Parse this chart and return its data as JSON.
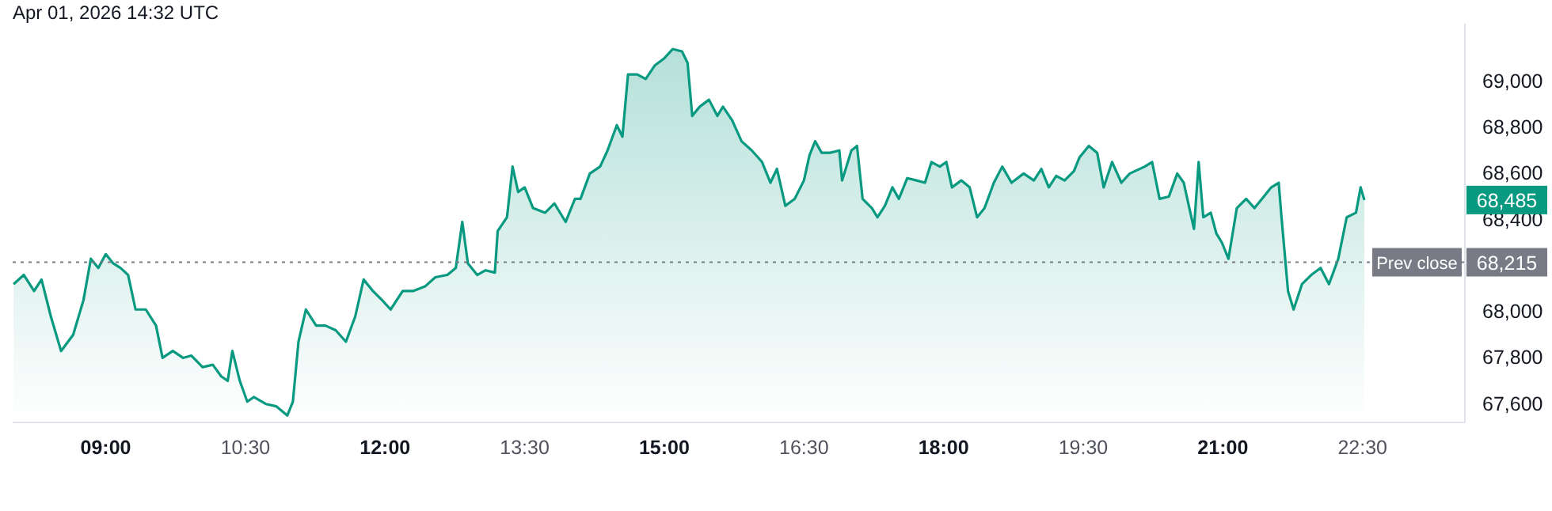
{
  "chart_data": {
    "type": "area",
    "annotations": [
      "Apr 01, 2026 14:32 UTC",
      "68,485",
      "68,215"
    ],
    "x": [
      8.01,
      8.12,
      8.23,
      8.31,
      8.41,
      8.52,
      8.65,
      8.76,
      8.84,
      8.92,
      9.0,
      9.08,
      9.16,
      9.24,
      9.32,
      9.43,
      9.54,
      9.61,
      9.72,
      9.83,
      9.92,
      10.04,
      10.15,
      10.24,
      10.31,
      10.36,
      10.44,
      10.52,
      10.59,
      10.72,
      10.83,
      10.95,
      11.01,
      11.07,
      11.15,
      11.26,
      11.36,
      11.47,
      11.58,
      11.68,
      11.77,
      11.87,
      11.97,
      12.06,
      12.19,
      12.3,
      12.43,
      12.54,
      12.67,
      12.76,
      12.83,
      12.89,
      12.99,
      13.08,
      13.18,
      13.21,
      13.31,
      13.37,
      13.43,
      13.5,
      13.59,
      13.72,
      13.82,
      13.94,
      14.04,
      14.1,
      14.2,
      14.31,
      14.39,
      14.49,
      14.55,
      14.61,
      14.71,
      14.8,
      14.9,
      15.0,
      15.09,
      15.19,
      15.25,
      15.3,
      15.38,
      15.48,
      15.57,
      15.63,
      15.73,
      15.83,
      15.94,
      16.05,
      16.14,
      16.21,
      16.3,
      16.4,
      16.5,
      16.56,
      16.62,
      16.69,
      16.78,
      16.88,
      16.91,
      17.01,
      17.07,
      17.13,
      17.23,
      17.29,
      17.37,
      17.45,
      17.52,
      17.61,
      17.71,
      17.8,
      17.87,
      17.96,
      18.03,
      18.09,
      18.19,
      18.28,
      18.36,
      18.44,
      18.54,
      18.63,
      18.73,
      18.86,
      18.97,
      19.05,
      19.13,
      19.21,
      19.3,
      19.4,
      19.46,
      19.56,
      19.65,
      19.72,
      19.81,
      19.91,
      20.0,
      20.16,
      20.24,
      20.32,
      20.42,
      20.51,
      20.58,
      20.64,
      20.69,
      20.74,
      20.79,
      20.87,
      20.93,
      20.99,
      21.06,
      21.15,
      21.25,
      21.34,
      21.44,
      21.52,
      21.6,
      21.63,
      21.7,
      21.76,
      21.85,
      21.95,
      22.05,
      22.14,
      22.24,
      22.33,
      22.43,
      22.48,
      22.52
    ],
    "series": [
      {
        "color": "#089981",
        "values": [
          68120,
          68160,
          68090,
          68140,
          67980,
          67830,
          67900,
          68050,
          68230,
          68190,
          68250,
          68210,
          68190,
          68160,
          68010,
          68010,
          67940,
          67800,
          67830,
          67800,
          67810,
          67760,
          67770,
          67720,
          67700,
          67830,
          67700,
          67610,
          67630,
          67600,
          67590,
          67550,
          67610,
          67870,
          68010,
          67940,
          67940,
          67920,
          67870,
          67980,
          68140,
          68090,
          68050,
          68010,
          68090,
          68090,
          68110,
          68150,
          68160,
          68190,
          68390,
          68210,
          68160,
          68180,
          68170,
          68350,
          68410,
          68630,
          68520,
          68540,
          68450,
          68430,
          68470,
          68390,
          68490,
          68490,
          68600,
          68630,
          68700,
          68810,
          68760,
          69030,
          69030,
          69010,
          69070,
          69100,
          69140,
          69130,
          69080,
          68850,
          68890,
          68920,
          68850,
          68890,
          68830,
          68740,
          68700,
          68650,
          68560,
          68620,
          68460,
          68490,
          68570,
          68680,
          68740,
          68690,
          68690,
          68700,
          68570,
          68700,
          68720,
          68490,
          68450,
          68410,
          68460,
          68540,
          68490,
          68580,
          68570,
          68560,
          68650,
          68630,
          68650,
          68540,
          68570,
          68540,
          68410,
          68450,
          68560,
          68630,
          68560,
          68600,
          68570,
          68620,
          68540,
          68590,
          68570,
          68610,
          68670,
          68720,
          68690,
          68540,
          68650,
          68560,
          68600,
          68630,
          68650,
          68490,
          68500,
          68600,
          68560,
          68450,
          68360,
          68650,
          68410,
          68430,
          68340,
          68300,
          68230,
          68450,
          68490,
          68450,
          68500,
          68540,
          68560,
          68410,
          68090,
          68010,
          68120,
          68160,
          68190,
          68120,
          68230,
          68410,
          68430,
          68540,
          68485
        ]
      }
    ],
    "xlim": [
      8.0,
      23.6
    ],
    "ylim": [
      67520,
      69250
    ],
    "xticks": [
      {
        "value": 9,
        "label": "09:00"
      },
      {
        "value": 10.5,
        "label": "10:30"
      },
      {
        "value": 12,
        "label": "12:00"
      },
      {
        "value": 13.5,
        "label": "13:30"
      },
      {
        "value": 15,
        "label": "15:00"
      },
      {
        "value": 16.5,
        "label": "16:30"
      },
      {
        "value": 18,
        "label": "18:00"
      },
      {
        "value": 19.5,
        "label": "19:30"
      },
      {
        "value": 21,
        "label": "21:00"
      },
      {
        "value": 22.5,
        "label": "22:30"
      }
    ],
    "yticks": [
      {
        "value": 67600,
        "label": "67,600"
      },
      {
        "value": 67800,
        "label": "67,800"
      },
      {
        "value": 68000,
        "label": "68,000"
      },
      {
        "value": 68400,
        "label": "68,400"
      },
      {
        "value": 68600,
        "label": "68,600"
      },
      {
        "value": 68800,
        "label": "68,800"
      },
      {
        "value": 69000,
        "label": "69,000"
      }
    ],
    "ref_lines": [
      {
        "axis": "y",
        "value": 68215,
        "label": "Prev close",
        "color": "#787b86",
        "line_style": "dotted"
      }
    ],
    "grid": false,
    "legend": false,
    "line_style": "solid",
    "marker": "none"
  }
}
